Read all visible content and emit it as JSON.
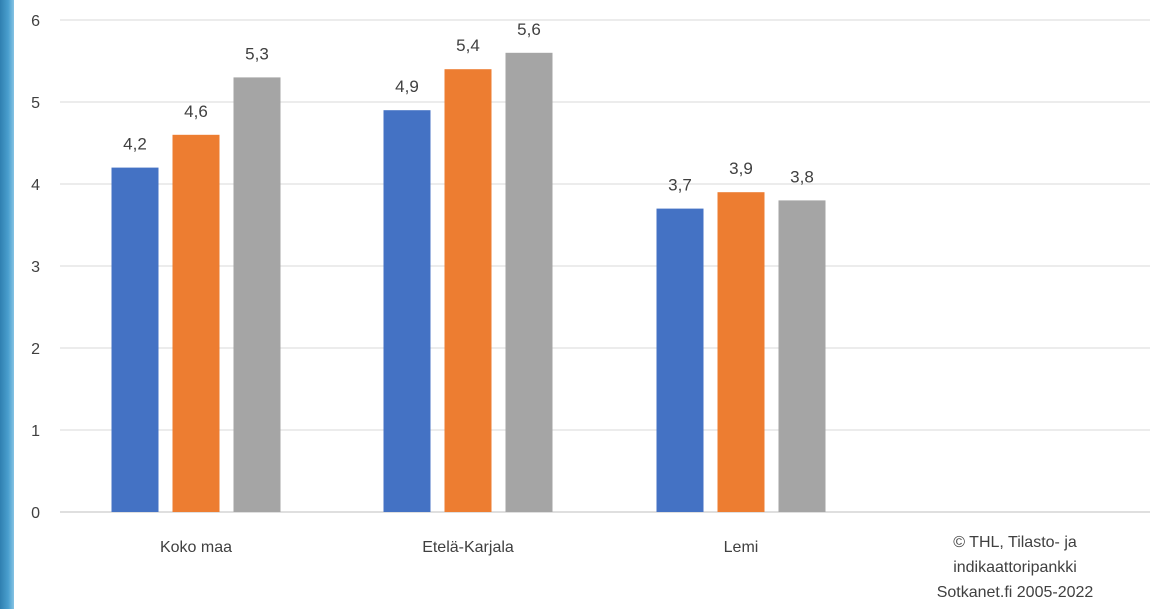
{
  "chart_data": {
    "type": "bar",
    "categories": [
      "Koko maa",
      "Etelä-Karjala",
      "Lemi"
    ],
    "series": [
      {
        "values": [
          4.2,
          4.9,
          3.7
        ],
        "labels": [
          "4,2",
          "4,9",
          "3,7"
        ],
        "color": "#4472c4"
      },
      {
        "values": [
          4.6,
          5.4,
          3.9
        ],
        "labels": [
          "4,6",
          "5,4",
          "3,9"
        ],
        "color": "#ed7d31"
      },
      {
        "values": [
          5.3,
          5.6,
          3.8
        ],
        "labels": [
          "5,3",
          "5,6",
          "3,8"
        ],
        "color": "#a5a5a5"
      }
    ],
    "ylim": [
      0,
      6
    ],
    "yticks": [
      "0",
      "1",
      "2",
      "3",
      "4",
      "5",
      "6"
    ],
    "grid": true,
    "gridColor": "#d9d9d9"
  },
  "source": {
    "line1": "© THL, Tilasto- ja",
    "line2": "indikaattoripankki",
    "line3": "Sotkanet.fi 2005-2022"
  }
}
